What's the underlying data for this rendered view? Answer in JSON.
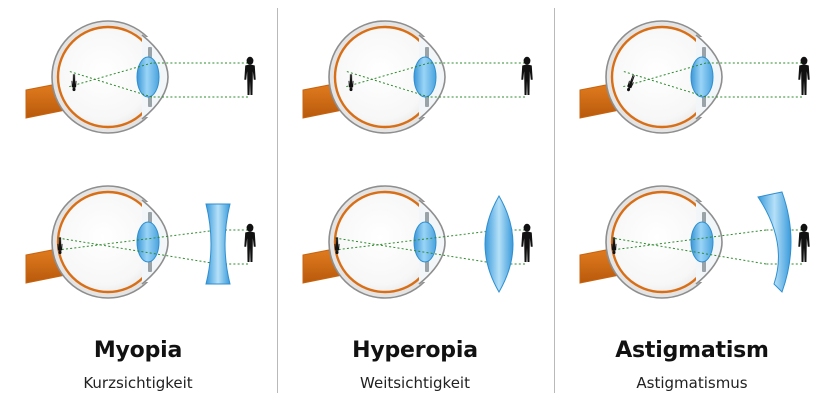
{
  "columns": [
    {
      "key": "myopia",
      "title": "Myopia",
      "subtitle": "Kurzsichtigkeit"
    },
    {
      "key": "hyperopia",
      "title": "Hyperopia",
      "subtitle": "Weitsichtigkeit"
    },
    {
      "key": "astigmatism",
      "title": "Astigmatism",
      "subtitle": "Astigmatismus"
    }
  ],
  "rows": [
    "uncorrected",
    "corrected"
  ],
  "corrective_lenses": [
    "concave-lens",
    "convex-lens",
    "meniscus-lens"
  ],
  "colors": {
    "eye_outline": "#8e8e8e",
    "sclera": "#e4e4e4",
    "retina_orange": "#d86f17",
    "optic_nerve": "#c86410",
    "lens_blue": "#7cc3ef",
    "lens_blue_dark": "#2f8fd0",
    "ray_green": "#2e8b2e",
    "person": "#111111",
    "divider": "#b9b9b9"
  }
}
